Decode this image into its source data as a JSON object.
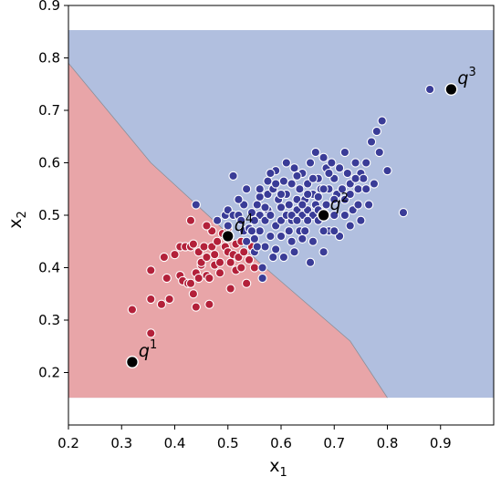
{
  "chart_data": {
    "type": "scatter",
    "title": "",
    "xlabel": "x",
    "xlabel_sub": "1",
    "ylabel": "x",
    "ylabel_sub": "2",
    "xlim": [
      0.2,
      1.0
    ],
    "ylim": [
      0.1,
      0.9
    ],
    "xticks": [
      "0.2",
      "0.3",
      "0.4",
      "0.5",
      "0.6",
      "0.7",
      "0.8",
      "0.9"
    ],
    "yticks": [
      "0.2",
      "0.3",
      "0.4",
      "0.5",
      "0.6",
      "0.7",
      "0.8",
      "0.9"
    ],
    "grid": false,
    "region_colors": {
      "class_red": "#e8a5a8",
      "class_blue": "#b1bfdf"
    },
    "point_colors": {
      "class_red": "#b3213a",
      "class_blue": "#3a3c97",
      "query": "#000000"
    },
    "decision_region": {
      "x_range": [
        0.2,
        1.0
      ],
      "y_range": [
        0.152,
        0.853
      ],
      "boundary": [
        [
          0.2,
          0.79
        ],
        [
          0.355,
          0.6
        ],
        [
          0.57,
          0.4
        ],
        [
          0.73,
          0.26
        ],
        [
          0.8,
          0.152
        ]
      ]
    },
    "series": [
      {
        "class": "red",
        "points": [
          [
            0.32,
            0.32
          ],
          [
            0.355,
            0.34
          ],
          [
            0.355,
            0.275
          ],
          [
            0.355,
            0.395
          ],
          [
            0.375,
            0.33
          ],
          [
            0.38,
            0.42
          ],
          [
            0.385,
            0.38
          ],
          [
            0.39,
            0.34
          ],
          [
            0.4,
            0.425
          ],
          [
            0.41,
            0.385
          ],
          [
            0.41,
            0.44
          ],
          [
            0.415,
            0.375
          ],
          [
            0.42,
            0.44
          ],
          [
            0.425,
            0.37
          ],
          [
            0.43,
            0.44
          ],
          [
            0.43,
            0.37
          ],
          [
            0.435,
            0.445
          ],
          [
            0.435,
            0.35
          ],
          [
            0.44,
            0.39
          ],
          [
            0.44,
            0.325
          ],
          [
            0.445,
            0.43
          ],
          [
            0.445,
            0.38
          ],
          [
            0.45,
            0.405
          ],
          [
            0.45,
            0.41
          ],
          [
            0.455,
            0.44
          ],
          [
            0.46,
            0.385
          ],
          [
            0.46,
            0.42
          ],
          [
            0.465,
            0.33
          ],
          [
            0.465,
            0.38
          ],
          [
            0.47,
            0.47
          ],
          [
            0.47,
            0.44
          ],
          [
            0.475,
            0.405
          ],
          [
            0.475,
            0.425
          ],
          [
            0.48,
            0.45
          ],
          [
            0.485,
            0.39
          ],
          [
            0.485,
            0.41
          ],
          [
            0.49,
            0.465
          ],
          [
            0.495,
            0.44
          ],
          [
            0.5,
            0.43
          ],
          [
            0.505,
            0.36
          ],
          [
            0.505,
            0.41
          ],
          [
            0.51,
            0.425
          ],
          [
            0.515,
            0.395
          ],
          [
            0.515,
            0.445
          ],
          [
            0.52,
            0.42
          ],
          [
            0.525,
            0.4
          ],
          [
            0.525,
            0.45
          ],
          [
            0.53,
            0.43
          ],
          [
            0.535,
            0.37
          ],
          [
            0.54,
            0.415
          ],
          [
            0.545,
            0.44
          ],
          [
            0.55,
            0.4
          ],
          [
            0.43,
            0.49
          ],
          [
            0.46,
            0.48
          ],
          [
            0.5,
            0.475
          ]
        ]
      },
      {
        "class": "blue",
        "points": [
          [
            0.44,
            0.52
          ],
          [
            0.48,
            0.49
          ],
          [
            0.495,
            0.5
          ],
          [
            0.5,
            0.51
          ],
          [
            0.51,
            0.575
          ],
          [
            0.51,
            0.5
          ],
          [
            0.52,
            0.5
          ],
          [
            0.525,
            0.49
          ],
          [
            0.53,
            0.47
          ],
          [
            0.53,
            0.52
          ],
          [
            0.535,
            0.55
          ],
          [
            0.535,
            0.45
          ],
          [
            0.54,
            0.475
          ],
          [
            0.545,
            0.505
          ],
          [
            0.55,
            0.43
          ],
          [
            0.55,
            0.455
          ],
          [
            0.555,
            0.52
          ],
          [
            0.56,
            0.5
          ],
          [
            0.56,
            0.535
          ],
          [
            0.56,
            0.47
          ],
          [
            0.565,
            0.38
          ],
          [
            0.565,
            0.4
          ],
          [
            0.57,
            0.44
          ],
          [
            0.57,
            0.49
          ],
          [
            0.575,
            0.54
          ],
          [
            0.575,
            0.51
          ],
          [
            0.575,
            0.565
          ],
          [
            0.58,
            0.5
          ],
          [
            0.58,
            0.46
          ],
          [
            0.585,
            0.42
          ],
          [
            0.585,
            0.55
          ],
          [
            0.59,
            0.585
          ],
          [
            0.59,
            0.48
          ],
          [
            0.595,
            0.53
          ],
          [
            0.6,
            0.515
          ],
          [
            0.6,
            0.46
          ],
          [
            0.6,
            0.49
          ],
          [
            0.605,
            0.565
          ],
          [
            0.61,
            0.5
          ],
          [
            0.61,
            0.54
          ],
          [
            0.615,
            0.47
          ],
          [
            0.615,
            0.52
          ],
          [
            0.62,
            0.56
          ],
          [
            0.62,
            0.49
          ],
          [
            0.625,
            0.43
          ],
          [
            0.625,
            0.59
          ],
          [
            0.63,
            0.53
          ],
          [
            0.63,
            0.51
          ],
          [
            0.635,
            0.47
          ],
          [
            0.635,
            0.55
          ],
          [
            0.64,
            0.5
          ],
          [
            0.64,
            0.58
          ],
          [
            0.645,
            0.53
          ],
          [
            0.645,
            0.47
          ],
          [
            0.65,
            0.51
          ],
          [
            0.65,
            0.56
          ],
          [
            0.655,
            0.41
          ],
          [
            0.655,
            0.6
          ],
          [
            0.66,
            0.54
          ],
          [
            0.66,
            0.5
          ],
          [
            0.665,
            0.62
          ],
          [
            0.665,
            0.52
          ],
          [
            0.67,
            0.57
          ],
          [
            0.67,
            0.49
          ],
          [
            0.675,
            0.55
          ],
          [
            0.68,
            0.61
          ],
          [
            0.68,
            0.43
          ],
          [
            0.685,
            0.59
          ],
          [
            0.685,
            0.52
          ],
          [
            0.69,
            0.55
          ],
          [
            0.69,
            0.47
          ],
          [
            0.695,
            0.6
          ],
          [
            0.7,
            0.5
          ],
          [
            0.7,
            0.57
          ],
          [
            0.705,
            0.54
          ],
          [
            0.71,
            0.46
          ],
          [
            0.715,
            0.55
          ],
          [
            0.72,
            0.62
          ],
          [
            0.72,
            0.53
          ],
          [
            0.725,
            0.58
          ],
          [
            0.73,
            0.56
          ],
          [
            0.735,
            0.51
          ],
          [
            0.74,
            0.6
          ],
          [
            0.745,
            0.55
          ],
          [
            0.75,
            0.49
          ],
          [
            0.75,
            0.58
          ],
          [
            0.755,
            0.57
          ],
          [
            0.76,
            0.6
          ],
          [
            0.765,
            0.52
          ],
          [
            0.77,
            0.64
          ],
          [
            0.775,
            0.56
          ],
          [
            0.78,
            0.66
          ],
          [
            0.785,
            0.62
          ],
          [
            0.79,
            0.68
          ],
          [
            0.8,
            0.585
          ],
          [
            0.83,
            0.505
          ],
          [
            0.88,
            0.74
          ],
          [
            0.59,
            0.435
          ],
          [
            0.605,
            0.42
          ],
          [
            0.62,
            0.45
          ],
          [
            0.64,
            0.455
          ],
          [
            0.66,
            0.45
          ],
          [
            0.68,
            0.47
          ],
          [
            0.7,
            0.47
          ],
          [
            0.545,
            0.47
          ],
          [
            0.555,
            0.44
          ],
          [
            0.57,
            0.515
          ],
          [
            0.59,
            0.56
          ],
          [
            0.61,
            0.6
          ],
          [
            0.63,
            0.575
          ],
          [
            0.65,
            0.54
          ],
          [
            0.67,
            0.535
          ],
          [
            0.69,
            0.58
          ],
          [
            0.71,
            0.59
          ],
          [
            0.73,
            0.54
          ],
          [
            0.745,
            0.52
          ],
          [
            0.76,
            0.55
          ],
          [
            0.72,
            0.5
          ],
          [
            0.73,
            0.48
          ],
          [
            0.6,
            0.54
          ],
          [
            0.64,
            0.52
          ],
          [
            0.66,
            0.57
          ],
          [
            0.68,
            0.55
          ],
          [
            0.7,
            0.53
          ],
          [
            0.74,
            0.57
          ],
          [
            0.52,
            0.53
          ],
          [
            0.5,
            0.48
          ],
          [
            0.55,
            0.49
          ],
          [
            0.56,
            0.55
          ],
          [
            0.58,
            0.58
          ],
          [
            0.62,
            0.5
          ],
          [
            0.63,
            0.49
          ],
          [
            0.65,
            0.49
          ],
          [
            0.67,
            0.51
          ]
        ]
      }
    ],
    "queries": [
      {
        "label": "q",
        "sup": "1",
        "x": 0.32,
        "y": 0.22
      },
      {
        "label": "q",
        "sup": "2",
        "x": 0.68,
        "y": 0.5
      },
      {
        "label": "q",
        "sup": "3",
        "x": 0.92,
        "y": 0.74
      },
      {
        "label": "q",
        "sup": "4",
        "x": 0.5,
        "y": 0.46
      }
    ]
  }
}
